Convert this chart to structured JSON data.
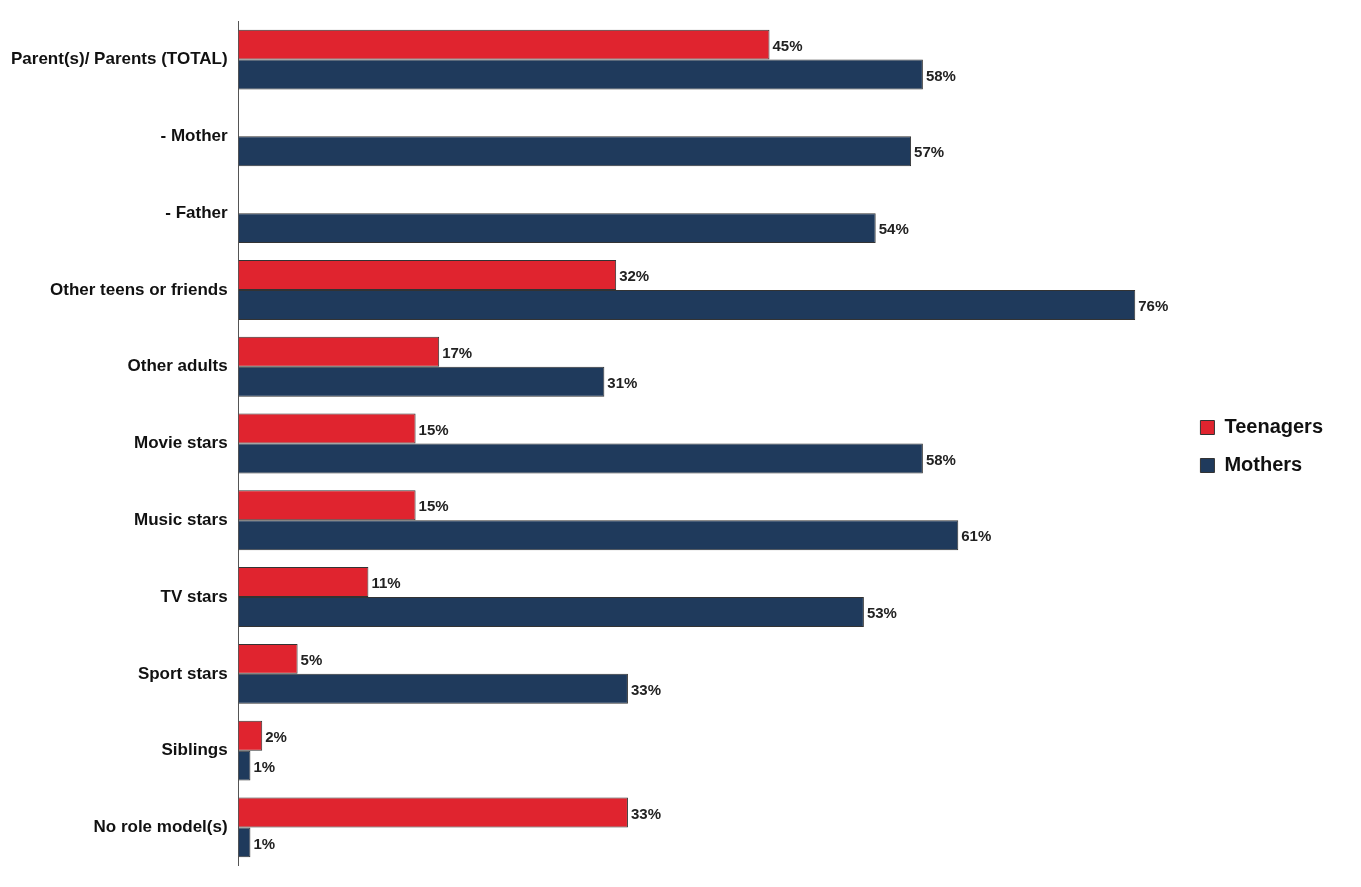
{
  "chart_data": {
    "type": "bar",
    "orientation": "horizontal",
    "categories": [
      "Parent(s)/ Parents (TOTAL)",
      "- Mother",
      "- Father",
      "Other teens or friends",
      "Other adults",
      "Movie stars",
      "Music stars",
      "TV stars",
      "Sport stars",
      "Siblings",
      "No role model(s)"
    ],
    "series": [
      {
        "name": "Teenagers",
        "color": "#e0242f",
        "values": [
          45,
          null,
          null,
          32,
          17,
          15,
          15,
          11,
          5,
          2,
          33
        ],
        "value_labels": [
          "45%",
          null,
          null,
          "32%",
          "17%",
          "15%",
          "15%",
          "11%",
          "5%",
          "2%",
          "33%"
        ]
      },
      {
        "name": "Mothers",
        "color": "#1f3a5c",
        "values": [
          58,
          57,
          54,
          76,
          31,
          58,
          61,
          53,
          33,
          1,
          1
        ],
        "value_labels": [
          "58%",
          "57%",
          "54%",
          "76%",
          "31%",
          "58%",
          "61%",
          "53%",
          "33%",
          "1%",
          "1%"
        ]
      }
    ],
    "tick_labels": "y",
    "legend": "right"
  }
}
